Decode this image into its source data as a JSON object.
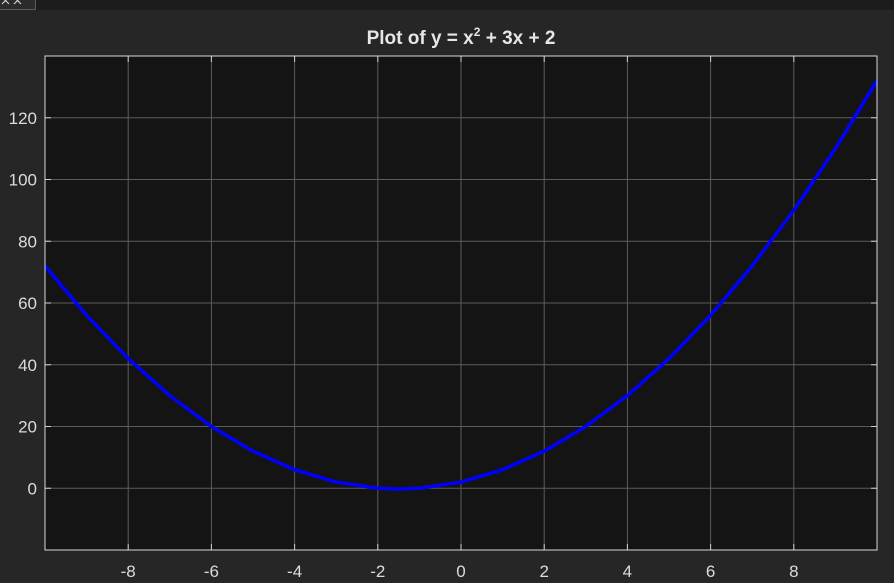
{
  "window": {
    "tab_icon": "close-icon"
  },
  "colors": {
    "figure_background": "#262626",
    "axes_background": "#141414",
    "grid": "#5c5c5c",
    "axis_text": "#dcdcdc",
    "line": "#0000ff"
  },
  "chart_data": {
    "type": "line",
    "title": {
      "prefix": "Plot  of  y  =  x",
      "superscript": "2",
      "suffix": "  +  3x  +  2"
    },
    "xlabel": "",
    "ylabel": "",
    "xlim": [
      -10,
      10
    ],
    "ylim": [
      -20,
      140
    ],
    "xticks": [
      -8,
      -6,
      -4,
      -2,
      0,
      2,
      4,
      6,
      8
    ],
    "xtick_labels": [
      "-8",
      "-6",
      "-4",
      "-2",
      "0",
      "2",
      "4",
      "6",
      "8"
    ],
    "yticks": [
      0,
      20,
      40,
      60,
      80,
      100,
      120
    ],
    "ytick_labels": [
      "0",
      "20",
      "40",
      "60",
      "80",
      "100",
      "120"
    ],
    "grid": true,
    "legend": "none",
    "series": [
      {
        "function": "x^2 + 3x + 2",
        "x": [
          -10,
          -9,
          -8,
          -7,
          -6,
          -5,
          -4,
          -3,
          -2,
          -1.5,
          -1,
          0,
          1,
          2,
          3,
          4,
          5,
          6,
          7,
          8,
          9,
          10
        ],
        "y": [
          72,
          56,
          42,
          30,
          20,
          12,
          6,
          2,
          0,
          -0.25,
          0,
          2,
          6,
          12,
          20,
          30,
          42,
          56,
          72,
          90,
          110,
          132
        ],
        "color": "#0000ff"
      }
    ]
  }
}
